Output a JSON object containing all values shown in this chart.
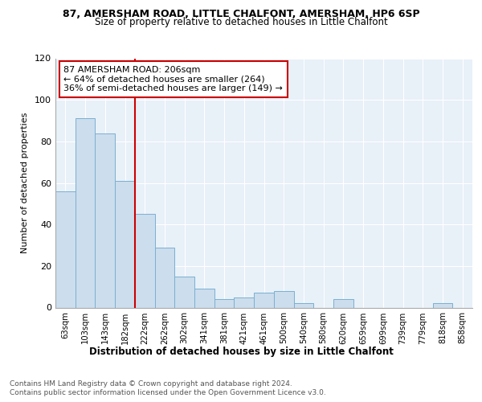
{
  "title1": "87, AMERSHAM ROAD, LITTLE CHALFONT, AMERSHAM, HP6 6SP",
  "title2": "Size of property relative to detached houses in Little Chalfont",
  "xlabel": "Distribution of detached houses by size in Little Chalfont",
  "ylabel": "Number of detached properties",
  "categories": [
    "63sqm",
    "103sqm",
    "143sqm",
    "182sqm",
    "222sqm",
    "262sqm",
    "302sqm",
    "341sqm",
    "381sqm",
    "421sqm",
    "461sqm",
    "500sqm",
    "540sqm",
    "580sqm",
    "620sqm",
    "659sqm",
    "699sqm",
    "739sqm",
    "779sqm",
    "818sqm",
    "858sqm"
  ],
  "values": [
    56,
    91,
    84,
    61,
    45,
    29,
    15,
    9,
    4,
    5,
    7,
    8,
    2,
    0,
    4,
    0,
    0,
    0,
    0,
    2,
    0
  ],
  "bar_color": "#ccdded",
  "bar_edge_color": "#7ab0d0",
  "vline_x": 3.5,
  "vline_color": "#cc0000",
  "annotation_line1": "87 AMERSHAM ROAD: 206sqm",
  "annotation_line2": "← 64% of detached houses are smaller (264)",
  "annotation_line3": "36% of semi-detached houses are larger (149) →",
  "annotation_box_color": "#cc0000",
  "ylim": [
    0,
    120
  ],
  "yticks": [
    0,
    20,
    40,
    60,
    80,
    100,
    120
  ],
  "footer1": "Contains HM Land Registry data © Crown copyright and database right 2024.",
  "footer2": "Contains public sector information licensed under the Open Government Licence v3.0.",
  "bg_color": "#ffffff",
  "plot_bg_color": "#e8f0f8",
  "grid_color": "#ffffff"
}
